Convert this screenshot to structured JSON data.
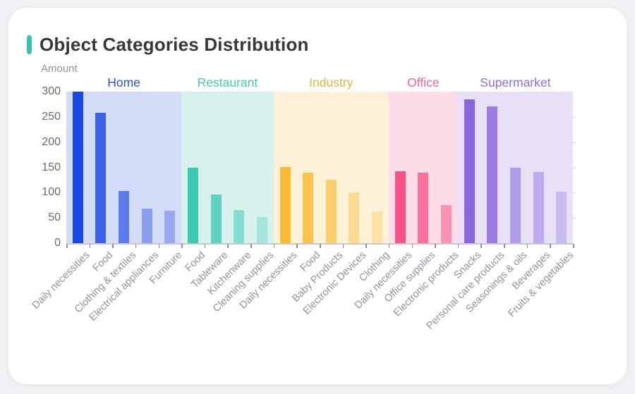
{
  "page": {
    "background_color": "#f0f1f4",
    "card_background_color": "#ffffff"
  },
  "header": {
    "title": "Object Categories Distribution",
    "accent_color": "#35c3b5"
  },
  "chart_data": {
    "type": "bar",
    "title": "Object Categories Distribution",
    "xlabel": "",
    "ylabel": "Amount",
    "ylim": [
      0,
      300
    ],
    "yticks": [
      0,
      50,
      100,
      150,
      200,
      250,
      300
    ],
    "grid": false,
    "legend_position": "none",
    "group_labels_position": "top",
    "groups": [
      {
        "label": "Home",
        "label_color": "#2f4ce0",
        "panel_color": "#d2dcf7",
        "bars": [
          {
            "category": "Daily necessities",
            "value": 300,
            "color": "#1a49e2"
          },
          {
            "category": "Food",
            "value": 258,
            "color": "#3b62e7"
          },
          {
            "category": "Clothing & textiles",
            "value": 103,
            "color": "#5c7ceb"
          },
          {
            "category": "Electrical appliances",
            "value": 69,
            "color": "#8b9ef0"
          },
          {
            "category": "Furniture",
            "value": 64,
            "color": "#97a8f1"
          }
        ]
      },
      {
        "label": "Restaurant",
        "label_color": "#41cbb8",
        "panel_color": "#d7f1ec",
        "bars": [
          {
            "category": "Food",
            "value": 149,
            "color": "#3dc9b4"
          },
          {
            "category": "Tableware",
            "value": 96,
            "color": "#60d2c3"
          },
          {
            "category": "Kitchenware",
            "value": 65,
            "color": "#85ddd1"
          },
          {
            "category": "Cleaning supplies",
            "value": 52,
            "color": "#a4e6dd"
          }
        ]
      },
      {
        "label": "Industry",
        "label_color": "#e9b43c",
        "panel_color": "#fdf2d8",
        "bars": [
          {
            "category": "Daily necessities",
            "value": 151,
            "color": "#fbba33"
          },
          {
            "category": "Food",
            "value": 139,
            "color": "#fcc34c"
          },
          {
            "category": "Baby Products",
            "value": 126,
            "color": "#fcce6b"
          },
          {
            "category": "Electronic Devices",
            "value": 100,
            "color": "#fdda90"
          },
          {
            "category": "Clothing",
            "value": 63,
            "color": "#fde2a4"
          }
        ]
      },
      {
        "label": "Office",
        "label_color": "#f5628f",
        "panel_color": "#fbdce7",
        "bars": [
          {
            "category": "Daily necessities",
            "value": 143,
            "color": "#f75286"
          },
          {
            "category": "Office supplies",
            "value": 139,
            "color": "#f8709b"
          },
          {
            "category": "Electronic products",
            "value": 75,
            "color": "#fa92b3"
          }
        ]
      },
      {
        "label": "Supermarket",
        "label_color": "#8a70e0",
        "panel_color": "#e7e0f7",
        "bars": [
          {
            "category": "Snacks",
            "value": 285,
            "color": "#8a66dd"
          },
          {
            "category": "Personal care products",
            "value": 271,
            "color": "#9a7ce2"
          },
          {
            "category": "Seasonings & oils",
            "value": 149,
            "color": "#b19ceb"
          },
          {
            "category": "Beverages",
            "value": 141,
            "color": "#bfaaee"
          },
          {
            "category": "Fruits & vegetables",
            "value": 102,
            "color": "#cbbaf1"
          }
        ]
      }
    ]
  }
}
